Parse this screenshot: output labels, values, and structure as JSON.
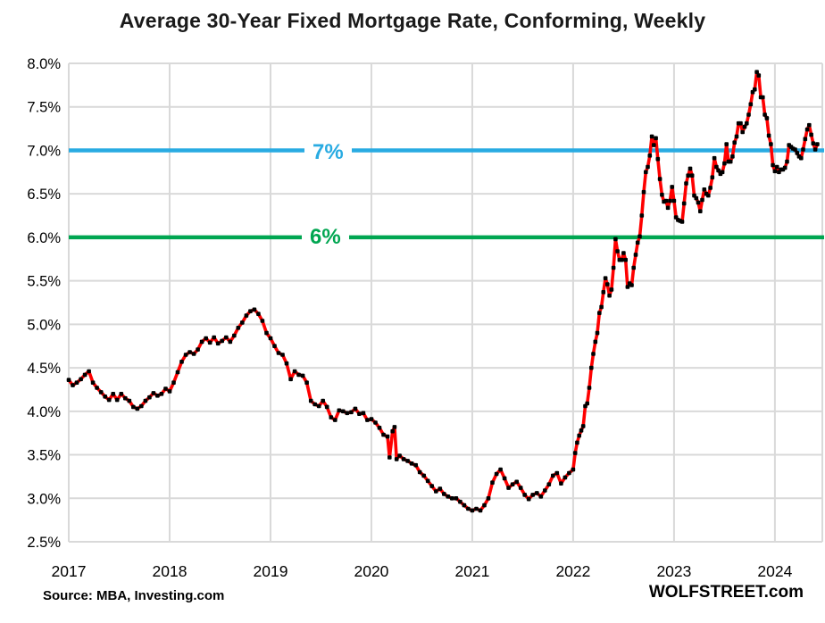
{
  "title": "Average 30-Year Fixed Mortgage Rate, Conforming, Weekly",
  "source_note": "Source: MBA, Investing.com",
  "branding": "WOLFSTREET.com",
  "reference_lines": [
    {
      "label": "7%",
      "value": 7.0,
      "color": "#29ABE2"
    },
    {
      "label": "6%",
      "value": 6.0,
      "color": "#00A651"
    }
  ],
  "colors": {
    "series_line": "#FE0000",
    "series_marker": "#000000",
    "gridline": "#D9D9D9",
    "title_text": "#1a1a1a"
  },
  "chart_data": {
    "type": "line",
    "title": "Average 30-Year Fixed Mortgage Rate, Conforming, Weekly",
    "xlabel": "",
    "ylabel": "",
    "xlim": [
      2017.0,
      2024.47
    ],
    "ylim": [
      2.5,
      8.0
    ],
    "grid": true,
    "x_ticks": [
      2017,
      2018,
      2019,
      2020,
      2021,
      2022,
      2023,
      2024
    ],
    "y_ticks": [
      8.0,
      7.5,
      7.0,
      6.5,
      6.0,
      5.5,
      5.0,
      4.5,
      4.0,
      3.5,
      3.0,
      2.5
    ],
    "y_tick_labels": [
      "8.0%",
      "7.5%",
      "7.0%",
      "6.5%",
      "6.0%",
      "5.5%",
      "5.0%",
      "4.5%",
      "4.0%",
      "3.5%",
      "3.0%",
      "2.5%"
    ],
    "series": [
      {
        "name": "Average 30-year fixed mortgage rate (weekly)",
        "color": "#FE0000",
        "marker": "square",
        "marker_color": "#000000",
        "points": [
          [
            2017.0,
            4.36
          ],
          [
            2017.04,
            4.3
          ],
          [
            2017.08,
            4.33
          ],
          [
            2017.12,
            4.37
          ],
          [
            2017.16,
            4.42
          ],
          [
            2017.2,
            4.46
          ],
          [
            2017.24,
            4.33
          ],
          [
            2017.28,
            4.27
          ],
          [
            2017.32,
            4.22
          ],
          [
            2017.36,
            4.17
          ],
          [
            2017.4,
            4.13
          ],
          [
            2017.44,
            4.2
          ],
          [
            2017.48,
            4.13
          ],
          [
            2017.52,
            4.2
          ],
          [
            2017.56,
            4.15
          ],
          [
            2017.6,
            4.12
          ],
          [
            2017.64,
            4.05
          ],
          [
            2017.68,
            4.03
          ],
          [
            2017.72,
            4.06
          ],
          [
            2017.76,
            4.12
          ],
          [
            2017.8,
            4.16
          ],
          [
            2017.84,
            4.21
          ],
          [
            2017.88,
            4.18
          ],
          [
            2017.92,
            4.2
          ],
          [
            2017.96,
            4.26
          ],
          [
            2018.0,
            4.23
          ],
          [
            2018.04,
            4.33
          ],
          [
            2018.08,
            4.45
          ],
          [
            2018.12,
            4.57
          ],
          [
            2018.16,
            4.65
          ],
          [
            2018.2,
            4.68
          ],
          [
            2018.24,
            4.66
          ],
          [
            2018.28,
            4.71
          ],
          [
            2018.32,
            4.8
          ],
          [
            2018.36,
            4.84
          ],
          [
            2018.4,
            4.79
          ],
          [
            2018.44,
            4.85
          ],
          [
            2018.48,
            4.78
          ],
          [
            2018.52,
            4.81
          ],
          [
            2018.56,
            4.85
          ],
          [
            2018.6,
            4.8
          ],
          [
            2018.64,
            4.87
          ],
          [
            2018.68,
            4.96
          ],
          [
            2018.72,
            5.02
          ],
          [
            2018.76,
            5.1
          ],
          [
            2018.8,
            5.15
          ],
          [
            2018.84,
            5.17
          ],
          [
            2018.88,
            5.12
          ],
          [
            2018.92,
            5.04
          ],
          [
            2018.96,
            4.9
          ],
          [
            2019.0,
            4.84
          ],
          [
            2019.04,
            4.75
          ],
          [
            2019.08,
            4.67
          ],
          [
            2019.12,
            4.65
          ],
          [
            2019.16,
            4.55
          ],
          [
            2019.2,
            4.37
          ],
          [
            2019.24,
            4.46
          ],
          [
            2019.28,
            4.42
          ],
          [
            2019.32,
            4.41
          ],
          [
            2019.36,
            4.33
          ],
          [
            2019.4,
            4.12
          ],
          [
            2019.44,
            4.08
          ],
          [
            2019.48,
            4.06
          ],
          [
            2019.52,
            4.12
          ],
          [
            2019.56,
            4.05
          ],
          [
            2019.6,
            3.93
          ],
          [
            2019.64,
            3.9
          ],
          [
            2019.68,
            4.01
          ],
          [
            2019.72,
            4.0
          ],
          [
            2019.76,
            3.98
          ],
          [
            2019.8,
            3.99
          ],
          [
            2019.84,
            4.03
          ],
          [
            2019.88,
            3.97
          ],
          [
            2019.92,
            3.98
          ],
          [
            2019.96,
            3.9
          ],
          [
            2020.0,
            3.91
          ],
          [
            2020.04,
            3.87
          ],
          [
            2020.08,
            3.81
          ],
          [
            2020.12,
            3.73
          ],
          [
            2020.16,
            3.71
          ],
          [
            2020.18,
            3.47
          ],
          [
            2020.21,
            3.77
          ],
          [
            2020.23,
            3.82
          ],
          [
            2020.25,
            3.45
          ],
          [
            2020.28,
            3.49
          ],
          [
            2020.32,
            3.45
          ],
          [
            2020.36,
            3.43
          ],
          [
            2020.4,
            3.4
          ],
          [
            2020.44,
            3.38
          ],
          [
            2020.48,
            3.3
          ],
          [
            2020.52,
            3.26
          ],
          [
            2020.56,
            3.2
          ],
          [
            2020.6,
            3.14
          ],
          [
            2020.64,
            3.08
          ],
          [
            2020.68,
            3.11
          ],
          [
            2020.72,
            3.05
          ],
          [
            2020.76,
            3.02
          ],
          [
            2020.8,
            3.0
          ],
          [
            2020.84,
            3.0
          ],
          [
            2020.88,
            2.96
          ],
          [
            2020.92,
            2.92
          ],
          [
            2020.96,
            2.88
          ],
          [
            2021.0,
            2.86
          ],
          [
            2021.04,
            2.88
          ],
          [
            2021.08,
            2.86
          ],
          [
            2021.12,
            2.92
          ],
          [
            2021.16,
            3.0
          ],
          [
            2021.2,
            3.18
          ],
          [
            2021.24,
            3.28
          ],
          [
            2021.28,
            3.33
          ],
          [
            2021.32,
            3.23
          ],
          [
            2021.36,
            3.12
          ],
          [
            2021.4,
            3.16
          ],
          [
            2021.44,
            3.19
          ],
          [
            2021.48,
            3.12
          ],
          [
            2021.52,
            3.04
          ],
          [
            2021.56,
            2.99
          ],
          [
            2021.6,
            3.04
          ],
          [
            2021.64,
            3.06
          ],
          [
            2021.68,
            3.02
          ],
          [
            2021.72,
            3.09
          ],
          [
            2021.76,
            3.16
          ],
          [
            2021.8,
            3.26
          ],
          [
            2021.84,
            3.29
          ],
          [
            2021.88,
            3.17
          ],
          [
            2021.92,
            3.24
          ],
          [
            2021.96,
            3.29
          ],
          [
            2022.0,
            3.33
          ],
          [
            2022.02,
            3.52
          ],
          [
            2022.04,
            3.64
          ],
          [
            2022.06,
            3.72
          ],
          [
            2022.08,
            3.78
          ],
          [
            2022.1,
            3.83
          ],
          [
            2022.12,
            4.06
          ],
          [
            2022.14,
            4.09
          ],
          [
            2022.16,
            4.27
          ],
          [
            2022.18,
            4.5
          ],
          [
            2022.2,
            4.66
          ],
          [
            2022.22,
            4.8
          ],
          [
            2022.24,
            4.9
          ],
          [
            2022.26,
            5.13
          ],
          [
            2022.28,
            5.2
          ],
          [
            2022.3,
            5.37
          ],
          [
            2022.32,
            5.53
          ],
          [
            2022.34,
            5.46
          ],
          [
            2022.36,
            5.33
          ],
          [
            2022.38,
            5.4
          ],
          [
            2022.4,
            5.65
          ],
          [
            2022.42,
            5.98
          ],
          [
            2022.44,
            5.84
          ],
          [
            2022.46,
            5.74
          ],
          [
            2022.48,
            5.74
          ],
          [
            2022.5,
            5.82
          ],
          [
            2022.52,
            5.74
          ],
          [
            2022.54,
            5.43
          ],
          [
            2022.56,
            5.47
          ],
          [
            2022.58,
            5.45
          ],
          [
            2022.6,
            5.65
          ],
          [
            2022.62,
            5.8
          ],
          [
            2022.64,
            5.94
          ],
          [
            2022.66,
            6.01
          ],
          [
            2022.68,
            6.25
          ],
          [
            2022.7,
            6.52
          ],
          [
            2022.72,
            6.75
          ],
          [
            2022.74,
            6.81
          ],
          [
            2022.76,
            6.94
          ],
          [
            2022.78,
            7.16
          ],
          [
            2022.8,
            7.06
          ],
          [
            2022.82,
            7.14
          ],
          [
            2022.84,
            6.9
          ],
          [
            2022.86,
            6.67
          ],
          [
            2022.88,
            6.49
          ],
          [
            2022.9,
            6.41
          ],
          [
            2022.92,
            6.42
          ],
          [
            2022.94,
            6.34
          ],
          [
            2022.96,
            6.42
          ],
          [
            2022.98,
            6.58
          ],
          [
            2023.0,
            6.42
          ],
          [
            2023.02,
            6.23
          ],
          [
            2023.04,
            6.2
          ],
          [
            2023.06,
            6.19
          ],
          [
            2023.08,
            6.18
          ],
          [
            2023.1,
            6.39
          ],
          [
            2023.12,
            6.62
          ],
          [
            2023.14,
            6.71
          ],
          [
            2023.16,
            6.79
          ],
          [
            2023.18,
            6.71
          ],
          [
            2023.2,
            6.48
          ],
          [
            2023.22,
            6.45
          ],
          [
            2023.24,
            6.4
          ],
          [
            2023.26,
            6.3
          ],
          [
            2023.28,
            6.43
          ],
          [
            2023.3,
            6.55
          ],
          [
            2023.32,
            6.5
          ],
          [
            2023.34,
            6.48
          ],
          [
            2023.36,
            6.57
          ],
          [
            2023.38,
            6.69
          ],
          [
            2023.4,
            6.91
          ],
          [
            2023.42,
            6.81
          ],
          [
            2023.44,
            6.77
          ],
          [
            2023.46,
            6.73
          ],
          [
            2023.48,
            6.75
          ],
          [
            2023.5,
            6.85
          ],
          [
            2023.52,
            7.07
          ],
          [
            2023.54,
            6.87
          ],
          [
            2023.56,
            6.87
          ],
          [
            2023.58,
            6.93
          ],
          [
            2023.6,
            7.09
          ],
          [
            2023.62,
            7.16
          ],
          [
            2023.64,
            7.31
          ],
          [
            2023.66,
            7.31
          ],
          [
            2023.68,
            7.21
          ],
          [
            2023.7,
            7.27
          ],
          [
            2023.72,
            7.31
          ],
          [
            2023.74,
            7.41
          ],
          [
            2023.76,
            7.53
          ],
          [
            2023.78,
            7.67
          ],
          [
            2023.8,
            7.7
          ],
          [
            2023.82,
            7.9
          ],
          [
            2023.84,
            7.86
          ],
          [
            2023.86,
            7.61
          ],
          [
            2023.88,
            7.61
          ],
          [
            2023.9,
            7.41
          ],
          [
            2023.92,
            7.37
          ],
          [
            2023.94,
            7.17
          ],
          [
            2023.96,
            7.07
          ],
          [
            2023.98,
            6.83
          ],
          [
            2024.0,
            6.76
          ],
          [
            2024.02,
            6.81
          ],
          [
            2024.04,
            6.75
          ],
          [
            2024.06,
            6.78
          ],
          [
            2024.08,
            6.78
          ],
          [
            2024.1,
            6.8
          ],
          [
            2024.12,
            6.87
          ],
          [
            2024.14,
            7.06
          ],
          [
            2024.16,
            7.04
          ],
          [
            2024.18,
            7.02
          ],
          [
            2024.2,
            7.01
          ],
          [
            2024.22,
            6.97
          ],
          [
            2024.24,
            6.93
          ],
          [
            2024.26,
            6.91
          ],
          [
            2024.28,
            7.01
          ],
          [
            2024.3,
            7.13
          ],
          [
            2024.32,
            7.24
          ],
          [
            2024.34,
            7.29
          ],
          [
            2024.36,
            7.18
          ],
          [
            2024.38,
            7.08
          ],
          [
            2024.4,
            7.01
          ],
          [
            2024.42,
            7.07
          ]
        ]
      }
    ]
  }
}
